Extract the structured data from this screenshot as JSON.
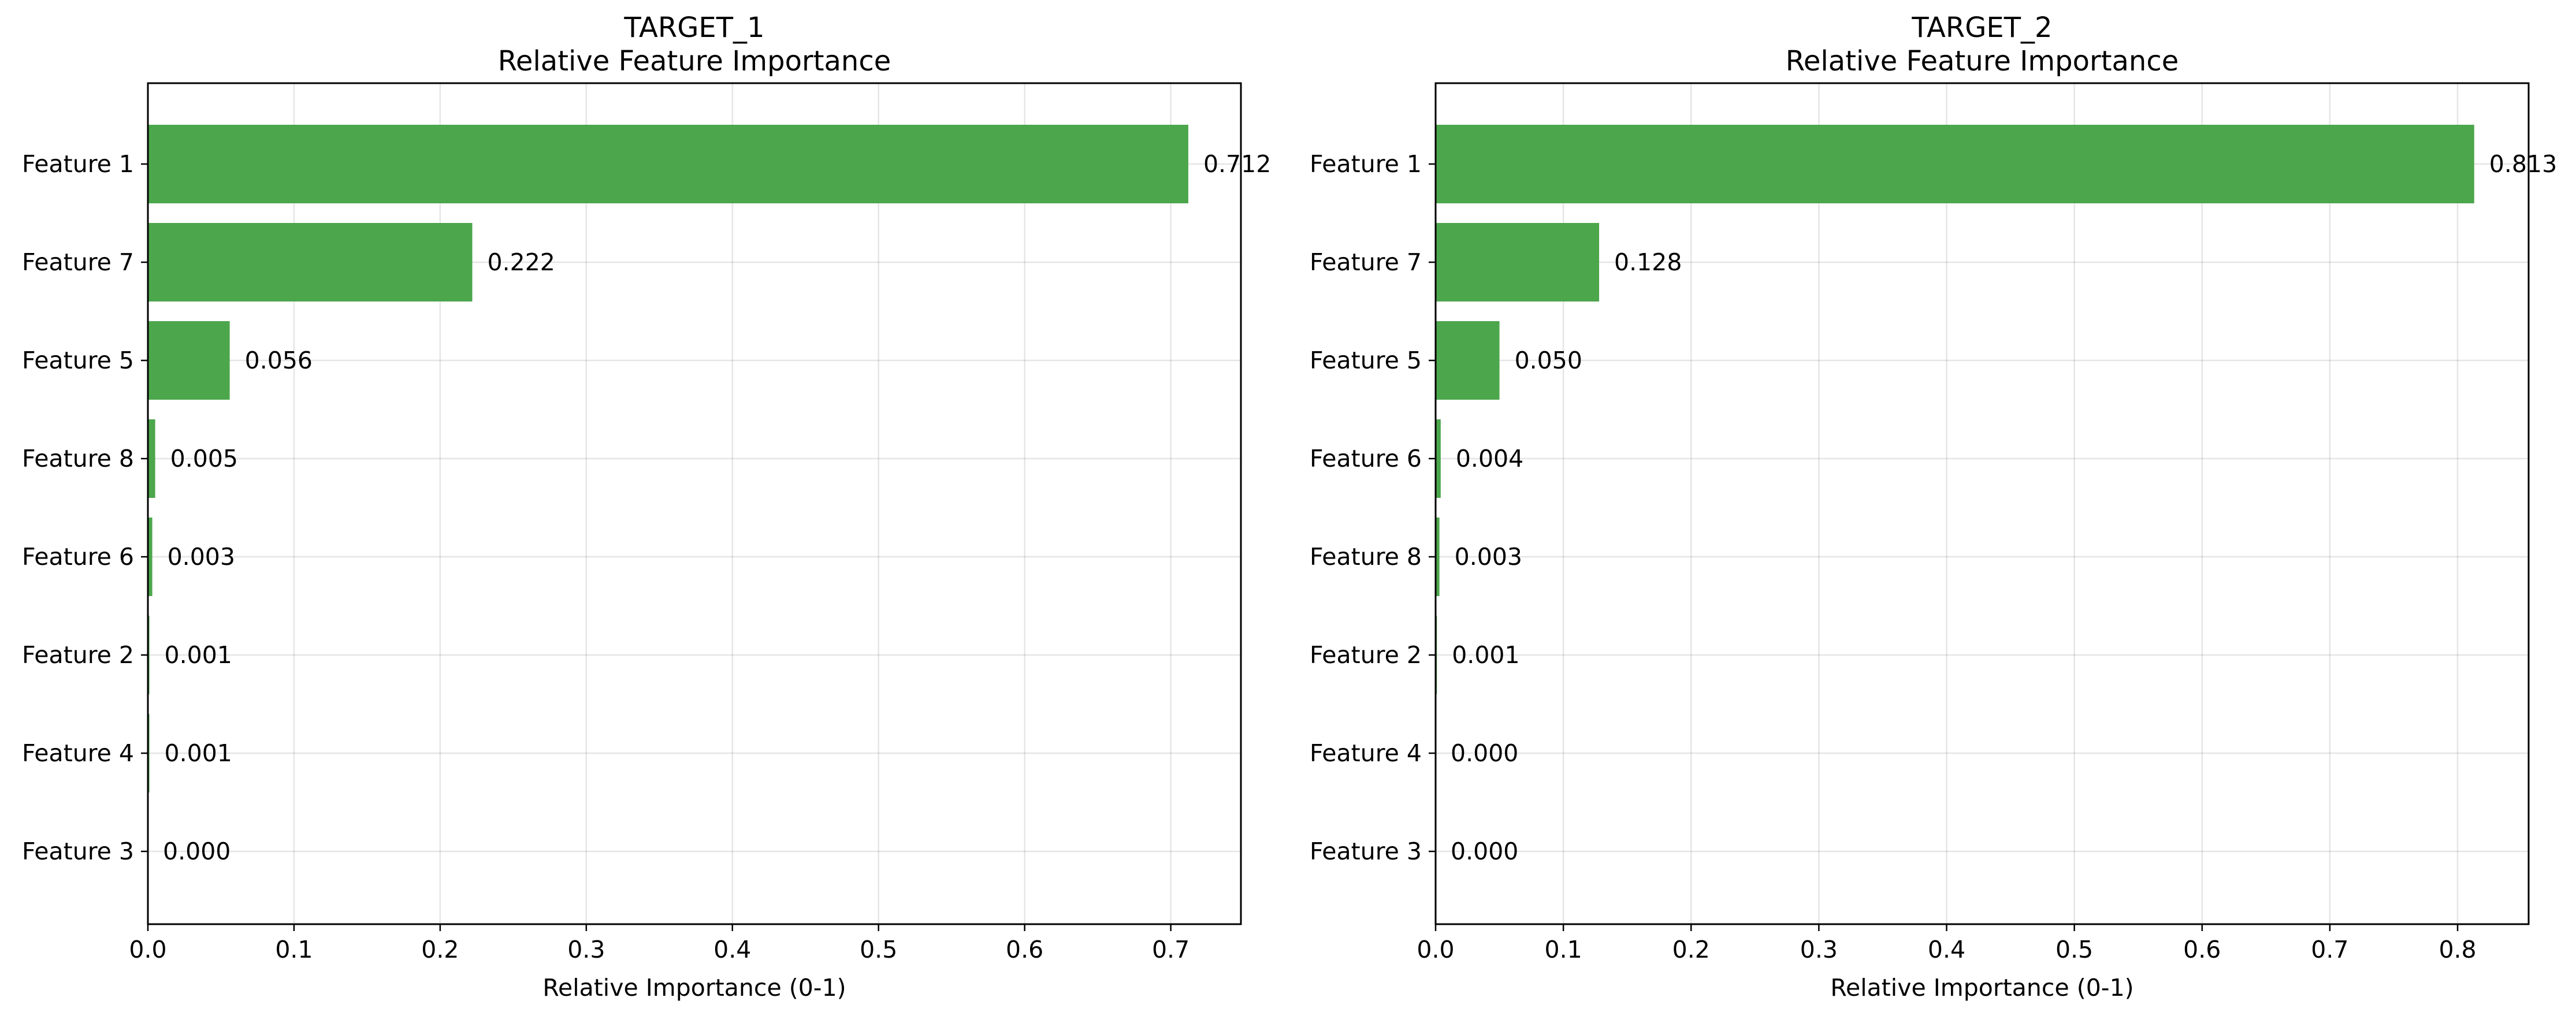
{
  "colors": {
    "bar": "#4ca64c",
    "axis": "#000000",
    "grid": "#e6e6e6",
    "background": "#ffffff"
  },
  "chart_data": [
    {
      "type": "bar",
      "orientation": "horizontal",
      "title": "TARGET_1",
      "subtitle": "Relative Feature Importance",
      "xlabel": "Relative Importance (0-1)",
      "ylabel": "",
      "xlim": [
        0,
        0.748
      ],
      "xticks": [
        0.0,
        0.1,
        0.2,
        0.3,
        0.4,
        0.5,
        0.6,
        0.7
      ],
      "xtick_labels": [
        "0.0",
        "0.1",
        "0.2",
        "0.3",
        "0.4",
        "0.5",
        "0.6",
        "0.7"
      ],
      "grid": true,
      "categories": [
        "Feature 1",
        "Feature 7",
        "Feature 5",
        "Feature 8",
        "Feature 6",
        "Feature 2",
        "Feature 4",
        "Feature 3"
      ],
      "values": [
        0.712,
        0.222,
        0.056,
        0.005,
        0.003,
        0.001,
        0.001,
        0.0
      ],
      "value_labels": [
        "0.712",
        "0.222",
        "0.056",
        "0.005",
        "0.003",
        "0.001",
        "0.001",
        "0.000"
      ]
    },
    {
      "type": "bar",
      "orientation": "horizontal",
      "title": "TARGET_2",
      "subtitle": "Relative Feature Importance",
      "xlabel": "Relative Importance (0-1)",
      "ylabel": "",
      "xlim": [
        0,
        0.8556
      ],
      "xticks": [
        0.0,
        0.1,
        0.2,
        0.3,
        0.4,
        0.5,
        0.6,
        0.7,
        0.8
      ],
      "xtick_labels": [
        "0.0",
        "0.1",
        "0.2",
        "0.3",
        "0.4",
        "0.5",
        "0.6",
        "0.7",
        "0.8"
      ],
      "grid": true,
      "categories": [
        "Feature 1",
        "Feature 7",
        "Feature 5",
        "Feature 6",
        "Feature 8",
        "Feature 2",
        "Feature 4",
        "Feature 3"
      ],
      "values": [
        0.813,
        0.128,
        0.05,
        0.004,
        0.003,
        0.001,
        0.0,
        0.0
      ],
      "value_labels": [
        "0.813",
        "0.128",
        "0.050",
        "0.004",
        "0.003",
        "0.001",
        "0.000",
        "0.000"
      ]
    }
  ]
}
